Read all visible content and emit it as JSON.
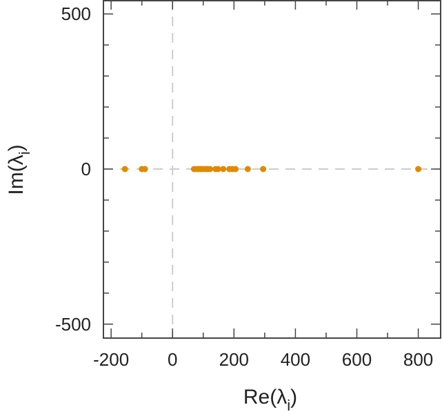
{
  "chart_data": {
    "type": "scatter",
    "title": "",
    "xlabel_main": "Re(λ",
    "xlabel_sub": "i",
    "xlabel_close": ")",
    "ylabel_main": "Im(λ",
    "ylabel_sub": "i",
    "ylabel_close": ")",
    "xlim": [
      -225,
      875
    ],
    "ylim": [
      -545,
      545
    ],
    "xticks": [
      -200,
      0,
      200,
      400,
      600,
      800
    ],
    "xtick_labels": [
      "-200",
      "0",
      "200",
      "400",
      "600",
      "800"
    ],
    "yticks": [
      -500,
      0,
      500
    ],
    "ytick_labels": [
      "-500",
      "0",
      "500"
    ],
    "grid": false,
    "reference_lines": {
      "x": 0,
      "y": 0,
      "style": "dashed",
      "color": "#cccccc"
    },
    "colors": {
      "points": "#e08a00",
      "axes": "#444444"
    },
    "series": [
      {
        "x": [
          -155,
          -100,
          -90,
          70,
          78,
          85,
          92,
          100,
          108,
          115,
          122,
          140,
          148,
          165,
          185,
          195,
          205,
          245,
          295,
          800
        ],
        "y": [
          0,
          0,
          0,
          0,
          0,
          0,
          0,
          0,
          0,
          0,
          0,
          0,
          0,
          0,
          0,
          0,
          0,
          0,
          0,
          0
        ]
      }
    ]
  }
}
